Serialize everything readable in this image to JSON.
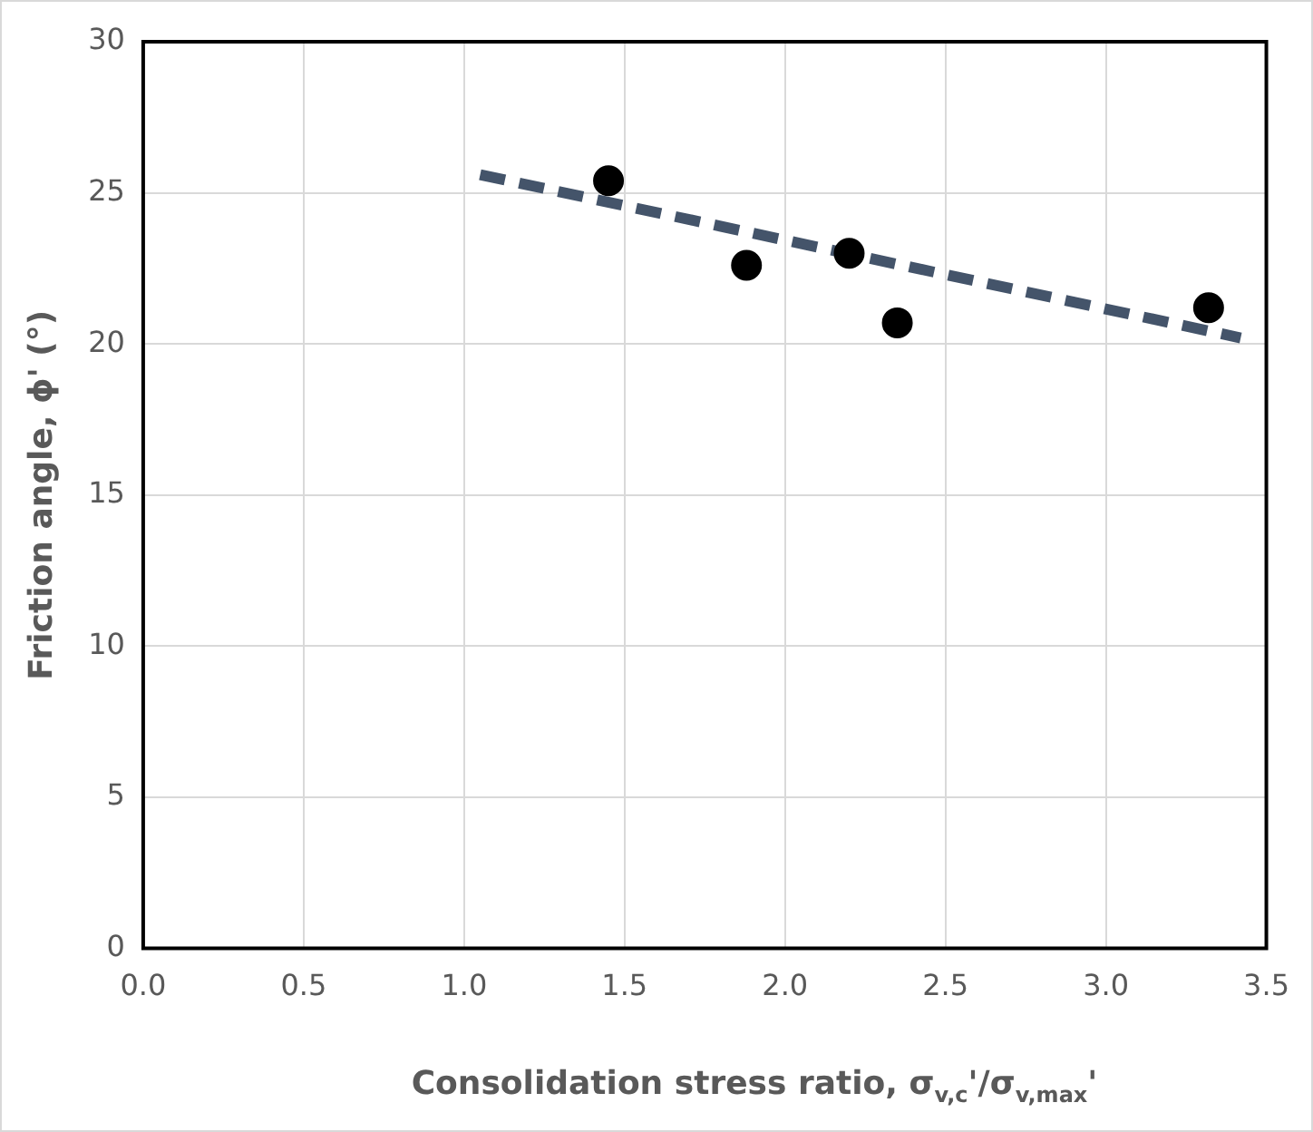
{
  "chart_data": {
    "type": "scatter",
    "xlabel": "Consolidation stress ratio, σ$_{v,c}$'/σ$_{v,max}$'",
    "ylabel": "Friction angle, ϕ' (°)",
    "series": [
      {
        "color": "#000000",
        "marker": "circle",
        "x": [
          1.45,
          1.88,
          2.2,
          2.35,
          3.32
        ],
        "values": [
          25.4,
          22.6,
          23.0,
          20.7,
          21.2
        ]
      },
      {
        "type": "line",
        "color": "#44546a",
        "line_style": "dashed",
        "marker": "none",
        "x": [
          1.05,
          3.42
        ],
        "values": [
          25.6,
          20.2
        ]
      }
    ],
    "xlim": [
      0,
      3.5
    ],
    "xticks": [
      {
        "value": 0,
        "label": "0.0"
      },
      0.5,
      {
        "value": 1,
        "label": "1.0"
      },
      1.5,
      {
        "value": 2,
        "label": "2.0"
      },
      2.5,
      {
        "value": 3,
        "label": "3.0"
      },
      3.5
    ],
    "ylim": [
      0,
      30
    ],
    "yticks": [
      0,
      5,
      10,
      15,
      20,
      25,
      30
    ],
    "grid": true,
    "legend": false
  }
}
